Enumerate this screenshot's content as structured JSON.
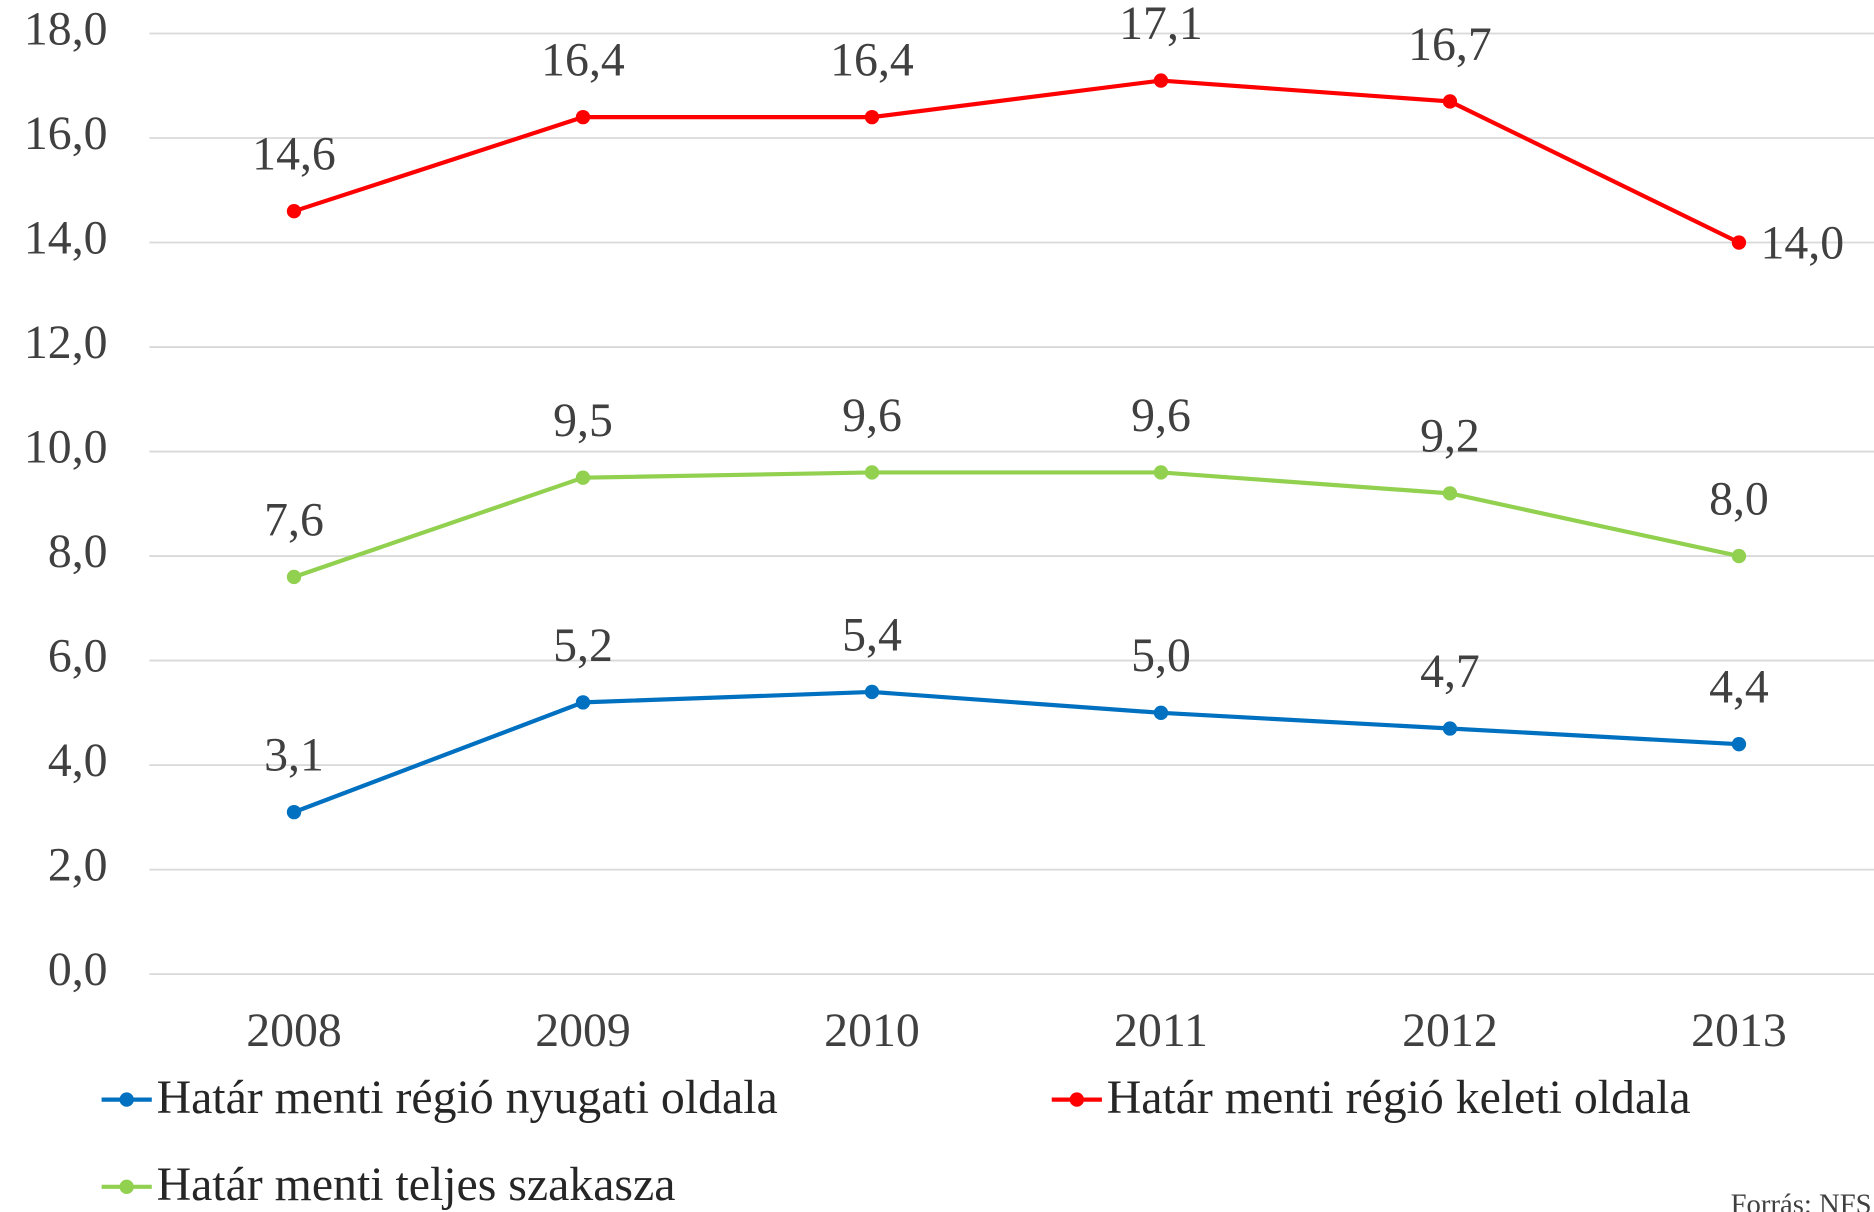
{
  "chart_data": {
    "type": "line",
    "categories": [
      "2008",
      "2009",
      "2010",
      "2011",
      "2012",
      "2013"
    ],
    "series": [
      {
        "name": "Határ menti régió nyugati oldala",
        "color": "#0070c0",
        "values": [
          3.1,
          5.2,
          5.4,
          5.0,
          4.7,
          4.4
        ],
        "value_labels": [
          "3,1",
          "5,2",
          "5,4",
          "5,0",
          "4,7",
          "4,4"
        ]
      },
      {
        "name": "Határ menti régió keleti oldala",
        "color": "#ff0000",
        "values": [
          14.6,
          16.4,
          16.4,
          17.1,
          16.7,
          14.0
        ],
        "value_labels": [
          "14,6",
          "16,4",
          "16,4",
          "17,1",
          "16,7",
          "14,0"
        ]
      },
      {
        "name": "Határ menti teljes szakasza",
        "color": "#92d050",
        "values": [
          7.6,
          9.5,
          9.6,
          9.6,
          9.2,
          8.0
        ],
        "value_labels": [
          "7,6",
          "9,5",
          "9,6",
          "9,6",
          "9,2",
          "8,0"
        ]
      }
    ],
    "ylim": [
      0,
      18
    ],
    "yticks": [
      {
        "value": 0,
        "label": "0,0"
      },
      {
        "value": 2,
        "label": "2,0"
      },
      {
        "value": 4,
        "label": "4,0"
      },
      {
        "value": 6,
        "label": "6,0"
      },
      {
        "value": 8,
        "label": "8,0"
      },
      {
        "value": 10,
        "label": "10,0"
      },
      {
        "value": 12,
        "label": "12,0"
      },
      {
        "value": 14,
        "label": "14,0"
      },
      {
        "value": 16,
        "label": "16,0"
      },
      {
        "value": 18,
        "label": "18,0"
      }
    ],
    "grid": true,
    "legend": "bottom",
    "source": "Forrás: NFS"
  }
}
